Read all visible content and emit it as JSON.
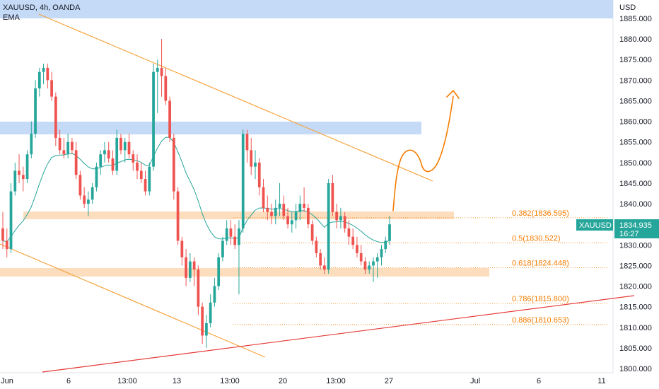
{
  "header": {
    "symbol_line": "XAUUSD, 4h, OANDA",
    "indicator": "EMA"
  },
  "price_axis": {
    "currency": "USD",
    "ticks": [
      "1885.000",
      "1880.000",
      "1875.000",
      "1870.000",
      "1865.000",
      "1860.000",
      "1855.000",
      "1850.000",
      "1845.000",
      "1840.000",
      "1835.000",
      "1830.000",
      "1825.000",
      "1820.000",
      "1815.000",
      "1810.000",
      "1805.000",
      "1800.000"
    ]
  },
  "time_axis": {
    "ticks": [
      "Jun",
      "6",
      "13:00",
      "13",
      "13:00",
      "20",
      "13:00",
      "27",
      "Jul",
      "6",
      "11"
    ]
  },
  "price_label": {
    "symbol": "XAUUSD",
    "price": "1834.935",
    "countdown": "16:27"
  },
  "fib_levels": [
    {
      "label": "0.382(1836.595)",
      "price": 1836.595
    },
    {
      "label": "0.5(1830.522)",
      "price": 1830.522
    },
    {
      "label": "0.618(1824.448)",
      "price": 1824.448
    },
    {
      "label": "0.786(1815.800)",
      "price": 1815.8
    },
    {
      "label": "0.886(1810.653)",
      "price": 1810.653
    }
  ],
  "colors": {
    "up": "#26a69a",
    "down": "#ef5350",
    "ema": "#26a69a",
    "zone_blue": "#bbd3f5",
    "zone_orange": "#fcd9b6",
    "trend_orange": "#f7a440",
    "trend_red": "#e53935",
    "fib": "#f57c00",
    "drawing": "#f57c00",
    "label_bg": "#26a69a"
  },
  "chart_data": {
    "type": "candlestick",
    "symbol": "XAUUSD",
    "timeframe": "4h",
    "ylim": [
      1800,
      1885
    ],
    "candles_ohlc": [
      [
        1834,
        1838,
        1829,
        1831
      ],
      [
        1831,
        1834,
        1827,
        1829
      ],
      [
        1829,
        1845,
        1828,
        1843
      ],
      [
        1843,
        1850,
        1842,
        1848
      ],
      [
        1848,
        1852,
        1845,
        1847
      ],
      [
        1847,
        1849,
        1843,
        1846
      ],
      [
        1846,
        1853,
        1845,
        1852
      ],
      [
        1852,
        1860,
        1851,
        1857
      ],
      [
        1857,
        1870,
        1856,
        1868
      ],
      [
        1868,
        1873,
        1866,
        1872
      ],
      [
        1872,
        1874,
        1869,
        1873
      ],
      [
        1873,
        1874,
        1868,
        1870
      ],
      [
        1870,
        1872,
        1865,
        1866
      ],
      [
        1866,
        1867,
        1854,
        1856
      ],
      [
        1856,
        1858,
        1852,
        1853
      ],
      [
        1853,
        1856,
        1851,
        1852
      ],
      [
        1852,
        1857,
        1851,
        1855
      ],
      [
        1855,
        1856,
        1852,
        1853
      ],
      [
        1853,
        1855,
        1846,
        1847
      ],
      [
        1847,
        1848,
        1841,
        1842
      ],
      [
        1842,
        1844,
        1839,
        1840
      ],
      [
        1840,
        1843,
        1837,
        1841
      ],
      [
        1841,
        1845,
        1840,
        1844
      ],
      [
        1844,
        1850,
        1843,
        1849
      ],
      [
        1849,
        1853,
        1847,
        1852
      ],
      [
        1852,
        1855,
        1850,
        1853
      ],
      [
        1853,
        1855,
        1850,
        1851
      ],
      [
        1851,
        1853,
        1847,
        1848
      ],
      [
        1848,
        1858,
        1847,
        1856
      ],
      [
        1856,
        1857,
        1852,
        1853
      ],
      [
        1853,
        1856,
        1850,
        1855
      ],
      [
        1855,
        1857,
        1851,
        1852
      ],
      [
        1852,
        1853,
        1848,
        1850
      ],
      [
        1850,
        1852,
        1846,
        1848
      ],
      [
        1848,
        1850,
        1845,
        1846
      ],
      [
        1846,
        1848,
        1842,
        1843
      ],
      [
        1843,
        1850,
        1842,
        1849
      ],
      [
        1849,
        1874,
        1848,
        1872
      ],
      [
        1872,
        1875,
        1862,
        1873
      ],
      [
        1873,
        1880,
        1866,
        1871
      ],
      [
        1871,
        1873,
        1864,
        1865
      ],
      [
        1865,
        1866,
        1855,
        1856
      ],
      [
        1856,
        1857,
        1841,
        1843
      ],
      [
        1843,
        1844,
        1830,
        1831
      ],
      [
        1831,
        1832,
        1825,
        1827
      ],
      [
        1827,
        1829,
        1820,
        1822
      ],
      [
        1822,
        1828,
        1821,
        1826
      ],
      [
        1826,
        1827,
        1820,
        1824
      ],
      [
        1824,
        1825,
        1813,
        1815
      ],
      [
        1815,
        1816,
        1806,
        1808
      ],
      [
        1808,
        1813,
        1805,
        1811
      ],
      [
        1811,
        1818,
        1810,
        1816
      ],
      [
        1816,
        1822,
        1815,
        1820
      ],
      [
        1820,
        1828,
        1819,
        1827
      ],
      [
        1827,
        1832,
        1826,
        1831
      ],
      [
        1831,
        1836,
        1830,
        1834
      ],
      [
        1834,
        1836,
        1830,
        1832
      ],
      [
        1832,
        1835,
        1829,
        1830
      ],
      [
        1830,
        1836,
        1818,
        1834
      ],
      [
        1834,
        1858,
        1833,
        1857
      ],
      [
        1857,
        1858,
        1850,
        1853
      ],
      [
        1853,
        1856,
        1847,
        1849
      ],
      [
        1849,
        1853,
        1846,
        1850
      ],
      [
        1850,
        1851,
        1842,
        1844
      ],
      [
        1844,
        1846,
        1838,
        1839
      ],
      [
        1839,
        1842,
        1836,
        1838
      ],
      [
        1838,
        1840,
        1835,
        1837
      ],
      [
        1837,
        1841,
        1835,
        1839
      ],
      [
        1839,
        1845,
        1837,
        1840
      ],
      [
        1840,
        1842,
        1836,
        1837
      ],
      [
        1837,
        1839,
        1834,
        1835
      ],
      [
        1835,
        1838,
        1833,
        1836
      ],
      [
        1836,
        1840,
        1834,
        1838
      ],
      [
        1838,
        1842,
        1836,
        1840
      ],
      [
        1840,
        1844,
        1838,
        1839
      ],
      [
        1839,
        1840,
        1834,
        1835
      ],
      [
        1835,
        1836,
        1830,
        1831
      ],
      [
        1831,
        1832,
        1827,
        1828
      ],
      [
        1828,
        1829,
        1824,
        1825
      ],
      [
        1825,
        1827,
        1823,
        1824
      ],
      [
        1824,
        1846,
        1823,
        1845
      ],
      [
        1845,
        1847,
        1837,
        1838
      ],
      [
        1838,
        1840,
        1834,
        1836
      ],
      [
        1836,
        1839,
        1834,
        1837
      ],
      [
        1837,
        1838,
        1833,
        1834
      ],
      [
        1834,
        1836,
        1830,
        1832
      ],
      [
        1832,
        1834,
        1829,
        1830
      ],
      [
        1830,
        1832,
        1827,
        1828
      ],
      [
        1828,
        1830,
        1825,
        1826
      ],
      [
        1826,
        1827,
        1823,
        1824
      ],
      [
        1824,
        1826,
        1823,
        1825
      ],
      [
        1825,
        1827,
        1821,
        1826
      ],
      [
        1826,
        1828,
        1822,
        1827
      ],
      [
        1827,
        1830,
        1825,
        1829
      ],
      [
        1829,
        1832,
        1828,
        1831
      ],
      [
        1831,
        1837,
        1830,
        1835
      ]
    ]
  }
}
